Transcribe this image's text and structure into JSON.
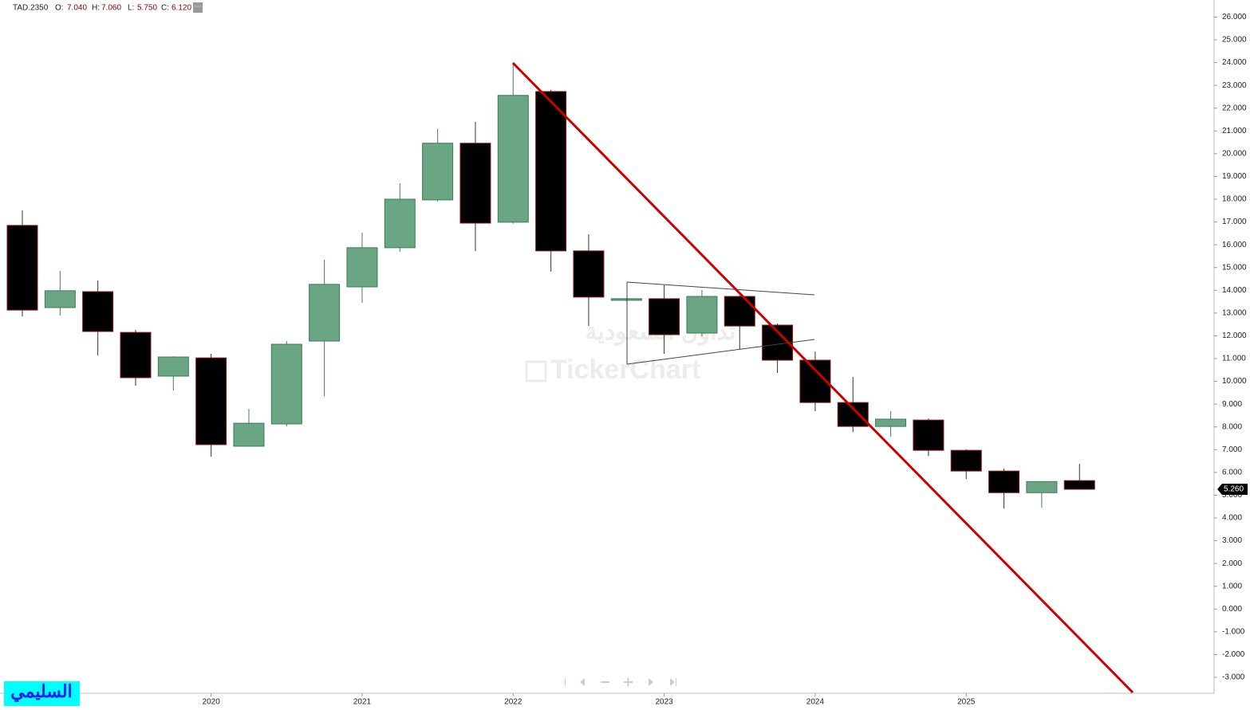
{
  "chart_data": {
    "type": "candlestick",
    "symbol": "TAD.2350",
    "header": [
      {
        "key": "O:",
        "value": "7.040"
      },
      {
        "key": "H:",
        "value": "7.060"
      },
      {
        "key": "L:",
        "value": "5.750"
      },
      {
        "key": "C:",
        "value": "6.120"
      }
    ],
    "watermark": [
      "تداول السعودية",
      "TickerChart"
    ],
    "badge": "السليمي",
    "categories": [
      null,
      null,
      null,
      null,
      null,
      "2020",
      null,
      null,
      null,
      "2021",
      null,
      null,
      null,
      "2022",
      null,
      null,
      null,
      "2023",
      null,
      null,
      null,
      "2024",
      null,
      null,
      null,
      "2025",
      null,
      null,
      null
    ],
    "open": [
      16.85,
      13.24,
      13.94,
      12.15,
      10.23,
      11.03,
      7.15,
      8.13,
      11.77,
      14.15,
      15.87,
      17.97,
      20.46,
      16.99,
      22.73,
      15.73,
      13.56,
      13.63,
      12.12,
      13.73,
      12.47,
      10.93,
      9.07,
      8.02,
      8.3,
      6.97,
      6.06,
      5.11,
      5.64
    ],
    "high": [
      17.51,
      14.85,
      14.43,
      12.26,
      11.1,
      11.21,
      8.79,
      11.77,
      15.34,
      16.53,
      18.7,
      21.09,
      21.4,
      23.96,
      22.8,
      16.46,
      13.66,
      14.22,
      14.01,
      13.77,
      12.54,
      11.31,
      10.19,
      8.69,
      8.37,
      7.01,
      6.16,
      5.6,
      6.37
    ],
    "low": [
      12.85,
      12.89,
      11.14,
      9.81,
      9.6,
      6.69,
      7.15,
      8.02,
      9.35,
      13.45,
      15.69,
      17.9,
      15.73,
      16.92,
      14.82,
      12.43,
      13.52,
      11.21,
      11.98,
      11.42,
      10.37,
      8.69,
      7.78,
      7.57,
      6.72,
      5.71,
      4.41,
      4.45,
      5.26
    ],
    "close": [
      13.13,
      13.98,
      12.19,
      10.16,
      11.07,
      7.22,
      8.16,
      11.63,
      14.26,
      15.87,
      18.0,
      20.46,
      16.95,
      22.56,
      15.73,
      13.7,
      13.63,
      12.05,
      13.73,
      12.43,
      10.93,
      9.07,
      8.02,
      8.34,
      6.97,
      6.06,
      5.11,
      5.6,
      5.26
    ],
    "up_color": "#6aa584",
    "down_color": "#000000",
    "last_price": {
      "value": 5.26,
      "label": "5.260"
    },
    "ylim": [
      -3.7,
      26.75
    ],
    "yticks": [
      {
        "value": 26,
        "label": "26.000"
      },
      {
        "value": 25,
        "label": "25.000"
      },
      {
        "value": 24,
        "label": "24.000"
      },
      {
        "value": 23,
        "label": "23.000"
      },
      {
        "value": 22,
        "label": "22.000"
      },
      {
        "value": 21,
        "label": "21.000"
      },
      {
        "value": 20,
        "label": "20.000"
      },
      {
        "value": 19,
        "label": "19.000"
      },
      {
        "value": 18,
        "label": "18.000"
      },
      {
        "value": 17,
        "label": "17.000"
      },
      {
        "value": 16,
        "label": "16.000"
      },
      {
        "value": 15,
        "label": "15.000"
      },
      {
        "value": 14,
        "label": "14.000"
      },
      {
        "value": 13,
        "label": "13.000"
      },
      {
        "value": 12,
        "label": "12.000"
      },
      {
        "value": 11,
        "label": "11.000"
      },
      {
        "value": 10,
        "label": "10.000"
      },
      {
        "value": 9,
        "label": "9.000"
      },
      {
        "value": 8,
        "label": "8.000"
      },
      {
        "value": 7,
        "label": "7.000"
      },
      {
        "value": 6,
        "label": "6.000"
      },
      {
        "value": 5,
        "label": "5.000"
      },
      {
        "value": 4,
        "label": "4.000"
      },
      {
        "value": 3,
        "label": "3.000"
      },
      {
        "value": 2,
        "label": "2.000"
      },
      {
        "value": 1,
        "label": "1.000"
      },
      {
        "value": 0,
        "label": "0.000"
      },
      {
        "value": -1,
        "label": "-1.000"
      },
      {
        "value": -2,
        "label": "-2.000"
      },
      {
        "value": -3,
        "label": "-3.000"
      }
    ]
  }
}
